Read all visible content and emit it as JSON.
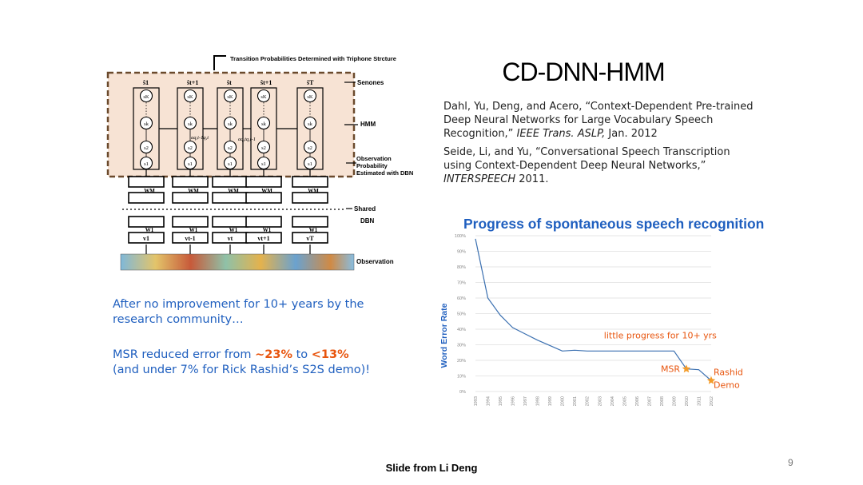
{
  "slide": {
    "title": "CD-DNN-HMM",
    "page_number": "9",
    "footer": "Slide from Li Deng"
  },
  "references": [
    {
      "pre": "Dahl, Yu, Deng, and Acero, “Context-Dependent Pre-trained Deep Neural Networks for Large Vocabulary Speech Recognition,” ",
      "venue": "IEEE Trans. ASLP,",
      "post": " Jan. 2012"
    },
    {
      "pre": "Seide, Li, and Yu, “Conversational Speech Transcription using Context-Dependent Deep Neural Networks,” ",
      "venue": "INTERSPEECH",
      "post": " 2011."
    }
  ],
  "notes": {
    "line1": "After no improvement for 10+ years by the research community…",
    "line2_pre": "MSR reduced error from ",
    "line2_a": "~23%",
    "line2_mid": " to ",
    "line2_b": "<13%",
    "line2_post": " (and under 7% for Rick Rashid’s S2S demo)!",
    "highlight_color": "#e8550e"
  },
  "diagram": {
    "top_label": "Transition Probabilities Determined with Triphone Strcture",
    "labels": {
      "senones": "Senones",
      "hmm": "HMM",
      "obs_prob": "Observation Probability Estimated with DBN",
      "shared": "Shared",
      "dbn": "DBN",
      "observation": "Observation"
    },
    "columns": [
      {
        "top": "ŝ1",
        "state": "s1"
      },
      {
        "top": "ŝt+1",
        "state": "s1"
      },
      {
        "top": "ŝt",
        "state": "s1"
      },
      {
        "top": "ŝt+1",
        "state": "s1"
      },
      {
        "top": "ŝT",
        "state": "s1"
      }
    ],
    "state_labels": [
      "sK",
      "sk",
      "s2",
      "s1"
    ],
    "transition_labels": [
      "aq,t-1q,t",
      "aq,tq,t-1"
    ],
    "weights": [
      "WM",
      "W1"
    ],
    "inputs": [
      "v1",
      "vt-1",
      "vt",
      "vt+1",
      "vT"
    ],
    "colors": {
      "hmm_fill": "#f7e3d4",
      "hmm_border": "#6b4a2c"
    }
  },
  "chart_data": {
    "type": "line",
    "title": "Progress of spontaneous speech recognition",
    "ylabel": "Word Error Rate",
    "xlabel": "",
    "ylim": [
      0,
      100
    ],
    "y_ticks": [
      "0%",
      "10%",
      "20%",
      "30%",
      "40%",
      "50%",
      "60%",
      "70%",
      "80%",
      "90%",
      "100%"
    ],
    "categories": [
      "1993",
      "1994",
      "1995",
      "1996",
      "1997",
      "1998",
      "1999",
      "2000",
      "2001",
      "2002",
      "2003",
      "2004",
      "2005",
      "2006",
      "2007",
      "2008",
      "2009",
      "2010",
      "2011",
      "2012"
    ],
    "series": [
      {
        "name": "Word Error Rate",
        "color": "#3a6fb0",
        "values": [
          98,
          60,
          49,
          41,
          37,
          33,
          29.5,
          26,
          26.5,
          26,
          26,
          26,
          26,
          26,
          26,
          26,
          26,
          14.5,
          14,
          7
        ]
      }
    ],
    "annotations": [
      {
        "text": "little progress for 10+ yrs",
        "x": "2004",
        "y": 32,
        "color": "#e8550e"
      },
      {
        "text": "MSR",
        "x": "2010",
        "y": 14.5,
        "color": "#e8550e",
        "marker": "star"
      },
      {
        "text": "Rashid Demo",
        "x": "2012",
        "y": 7,
        "color": "#e8550e",
        "marker": "star"
      }
    ],
    "grid": true,
    "marker_color": "#f39c2b",
    "title_color": "#1f5fbf"
  }
}
